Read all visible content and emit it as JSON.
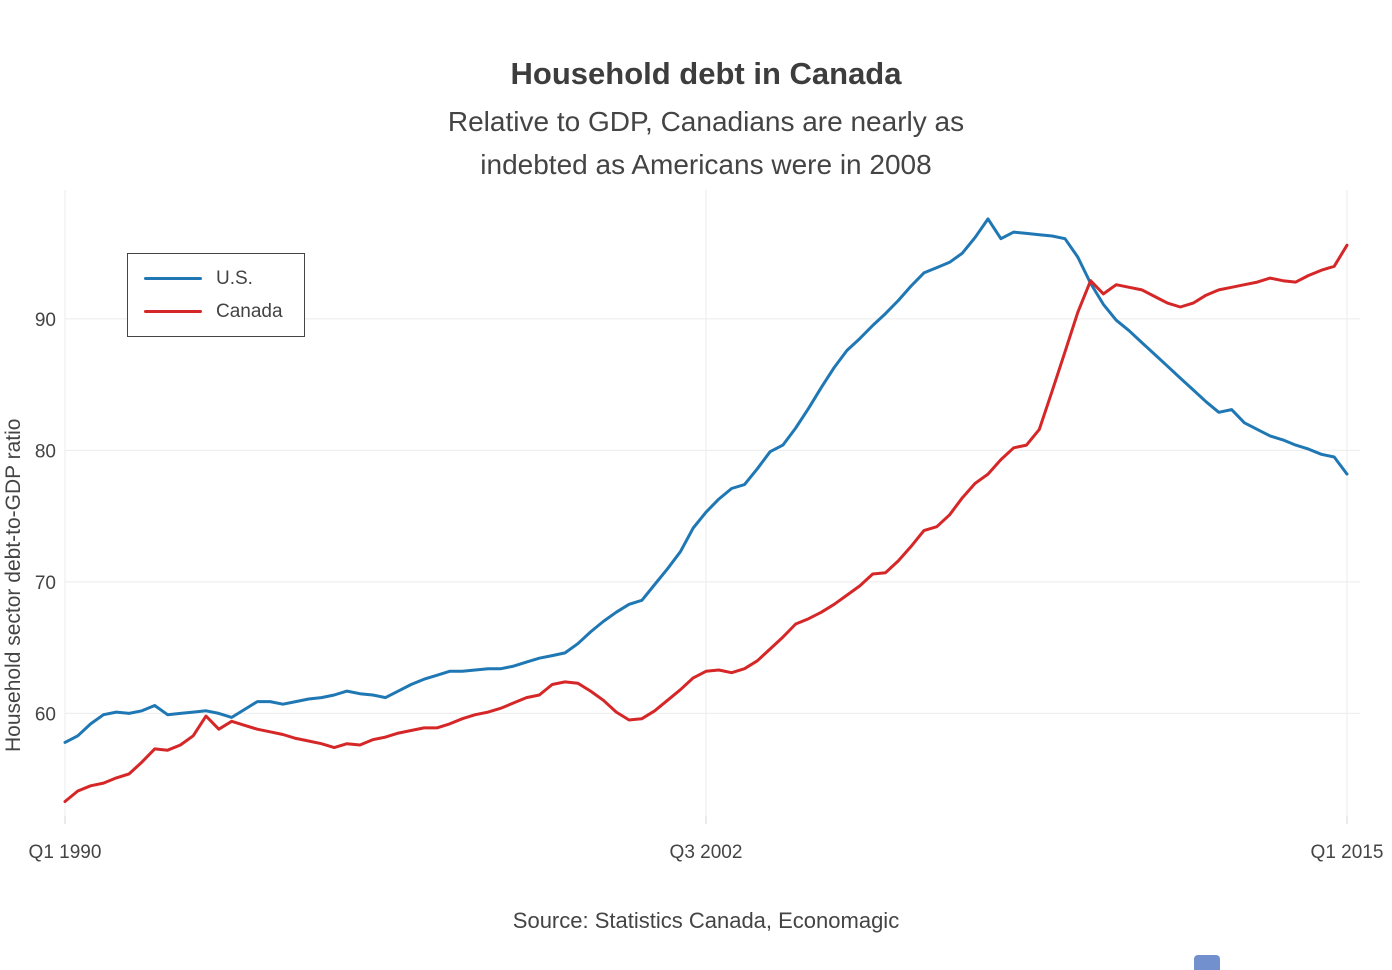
{
  "header": {
    "title": "Household debt in Canada",
    "subtitle_line1": "Relative to GDP, Canadians are nearly as",
    "subtitle_line2": "indebted as Americans were in 2008"
  },
  "footer": {
    "source": "Source: Statistics Canada, Economagic"
  },
  "legend": {
    "position": "top-left-inside",
    "border_color": "#444444",
    "items": [
      {
        "label": "U.S.",
        "color": "#1f77b4"
      },
      {
        "label": "Canada",
        "color": "#d62728"
      }
    ]
  },
  "chart_data": {
    "type": "line",
    "title": "Household debt in Canada",
    "subtitle": "Relative to GDP, Canadians are nearly as indebted as Americans were in 2008",
    "xlabel": "",
    "ylabel": "Household sector debt-to-GDP ratio",
    "grid": true,
    "background": "#ffffff",
    "grid_color": "#ebebeb",
    "text_color": "#444444",
    "x_axis": {
      "unit": "quarterly, Q1 1990 to Q1 2015",
      "tick_labels": [
        "Q1 1990",
        "Q3 2002",
        "Q1 2015"
      ],
      "tick_positions": [
        0,
        50,
        100
      ]
    },
    "y_axis": {
      "title": "Household sector debt-to-GDP ratio",
      "ticks": [
        60,
        70,
        80,
        90
      ],
      "ylim": [
        52.2,
        99.8
      ]
    },
    "series": [
      {
        "name": "U.S.",
        "color": "#1f77b4",
        "start": "Q1 1990",
        "end": "Q1 2015",
        "values": [
          57.8,
          58.3,
          59.2,
          59.9,
          60.1,
          60.0,
          60.2,
          60.6,
          59.9,
          60.0,
          60.1,
          60.2,
          60.0,
          59.7,
          60.3,
          60.9,
          60.9,
          60.7,
          60.9,
          61.1,
          61.2,
          61.4,
          61.7,
          61.5,
          61.4,
          61.2,
          61.7,
          62.2,
          62.6,
          62.9,
          63.2,
          63.2,
          63.3,
          63.4,
          63.4,
          63.6,
          63.9,
          64.2,
          64.4,
          64.6,
          65.3,
          66.2,
          67.0,
          67.7,
          68.3,
          68.6,
          69.8,
          71.0,
          72.3,
          74.1,
          75.3,
          76.3,
          77.1,
          77.4,
          78.6,
          79.9,
          80.4,
          81.7,
          83.2,
          84.8,
          86.3,
          87.6,
          88.5,
          89.5,
          90.4,
          91.4,
          92.5,
          93.5,
          93.9,
          94.3,
          95.0,
          96.2,
          97.6,
          96.1,
          96.6,
          96.5,
          96.4,
          96.3,
          96.1,
          94.7,
          92.7,
          91.1,
          89.9,
          89.1,
          88.2,
          87.3,
          86.4,
          85.5,
          84.6,
          83.7,
          82.9,
          83.1,
          82.1,
          81.6,
          81.1,
          80.8,
          80.4,
          80.1,
          79.7,
          79.5,
          78.2
        ]
      },
      {
        "name": "Canada",
        "color": "#d62728",
        "start": "Q1 1990",
        "end": "Q1 2015",
        "values": [
          53.3,
          54.1,
          54.5,
          54.7,
          55.1,
          55.4,
          56.3,
          57.3,
          57.2,
          57.6,
          58.3,
          59.8,
          58.8,
          59.4,
          59.1,
          58.8,
          58.6,
          58.4,
          58.1,
          57.9,
          57.7,
          57.4,
          57.7,
          57.6,
          58.0,
          58.2,
          58.5,
          58.7,
          58.9,
          58.9,
          59.2,
          59.6,
          59.9,
          60.1,
          60.4,
          60.8,
          61.2,
          61.4,
          62.2,
          62.4,
          62.3,
          61.7,
          61.0,
          60.1,
          59.5,
          59.6,
          60.2,
          61.0,
          61.8,
          62.7,
          63.2,
          63.3,
          63.1,
          63.4,
          64.0,
          64.9,
          65.8,
          66.8,
          67.2,
          67.7,
          68.3,
          69.0,
          69.7,
          70.6,
          70.7,
          71.6,
          72.7,
          73.9,
          74.2,
          75.1,
          76.4,
          77.5,
          78.2,
          79.3,
          80.2,
          80.4,
          81.6,
          84.5,
          87.5,
          90.5,
          92.9,
          91.9,
          92.6,
          92.4,
          92.2,
          91.7,
          91.2,
          90.9,
          91.2,
          91.8,
          92.2,
          92.4,
          92.6,
          92.8,
          93.1,
          92.9,
          92.8,
          93.3,
          93.7,
          94.0,
          95.6
        ]
      }
    ]
  }
}
